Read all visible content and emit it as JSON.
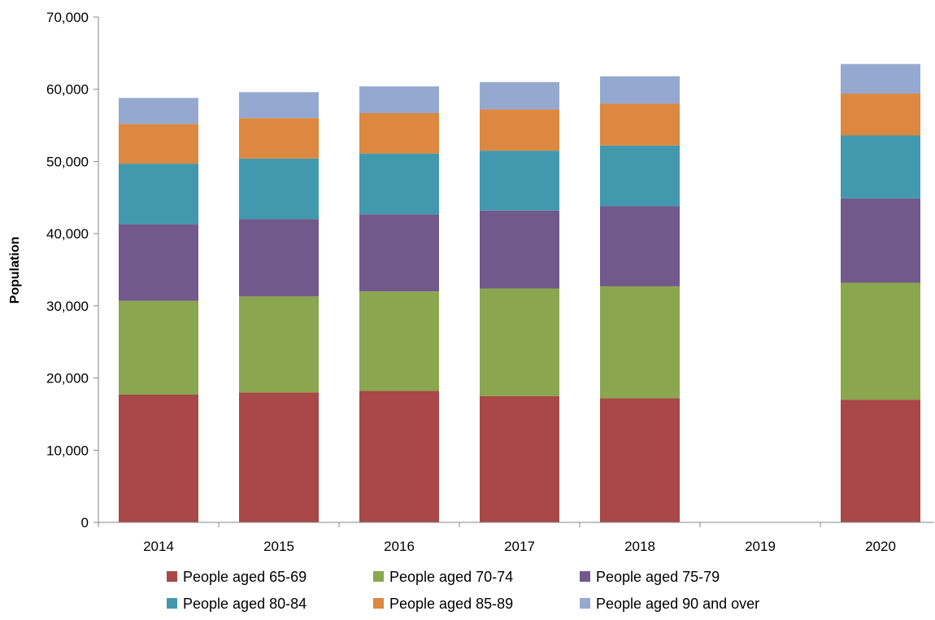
{
  "chart_data": {
    "type": "bar",
    "stacked": true,
    "title": "",
    "xlabel": "",
    "ylabel": "Population",
    "ylim": [
      0,
      70000
    ],
    "yticks": [
      0,
      10000,
      20000,
      30000,
      40000,
      50000,
      60000,
      70000
    ],
    "ytick_labels": [
      "0",
      "10,000",
      "20,000",
      "30,000",
      "40,000",
      "50,000",
      "60,000",
      "70,000"
    ],
    "categories": [
      "2014",
      "2015",
      "2016",
      "2017",
      "2018",
      "2019",
      "2020"
    ],
    "grid": false,
    "legend_position": "bottom",
    "series": [
      {
        "name": "People aged 65-69",
        "color": "#A84848",
        "values": [
          17700,
          18000,
          18200,
          17500,
          17200,
          null,
          17000
        ]
      },
      {
        "name": "People aged 70-74",
        "color": "#8AA64E",
        "values": [
          13000,
          13300,
          13800,
          14900,
          15500,
          null,
          16200
        ]
      },
      {
        "name": "People aged 75-79",
        "color": "#72598C",
        "values": [
          10600,
          10700,
          10700,
          10800,
          11100,
          null,
          11700
        ]
      },
      {
        "name": "People aged 80-84",
        "color": "#4299AE",
        "values": [
          8400,
          8400,
          8400,
          8300,
          8400,
          null,
          8700
        ]
      },
      {
        "name": "People aged 85-89",
        "color": "#DC8840",
        "values": [
          5500,
          5600,
          5600,
          5700,
          5800,
          null,
          5800
        ]
      },
      {
        "name": "People aged 90 and over",
        "color": "#95A9D0",
        "values": [
          3600,
          3600,
          3700,
          3800,
          3800,
          null,
          4100
        ]
      }
    ]
  }
}
